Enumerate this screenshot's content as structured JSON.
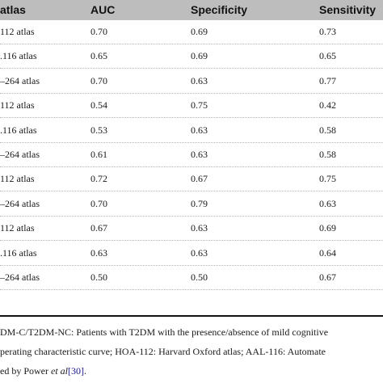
{
  "table": {
    "headers": [
      "atlas",
      "AUC",
      "Specificity",
      "Sensitivity"
    ],
    "rows": [
      [
        "112 atlas",
        "0.70",
        "0.69",
        "0.73"
      ],
      ".116 atlas|0.65|0.69|0.65",
      [
        "–264 atlas",
        "0.70",
        "0.63",
        "0.77"
      ],
      [
        "112 atlas",
        "0.54",
        "0.75",
        "0.42"
      ],
      [
        ".116 atlas",
        "0.53",
        "0.63",
        "0.58"
      ],
      [
        "–264 atlas",
        "0.61",
        "0.63",
        "0.58"
      ],
      [
        "112 atlas",
        "0.72",
        "0.67",
        "0.75"
      ],
      [
        "–264 atlas",
        "0.70",
        "0.79",
        "0.63"
      ],
      [
        "112 atlas",
        "0.67",
        "0.63",
        "0.69"
      ],
      [
        ".116 atlas",
        "0.63",
        "0.63",
        "0.64"
      ],
      [
        "–264 atlas",
        "0.50",
        "0.50",
        "0.67"
      ]
    ]
  },
  "footnote": {
    "line1": "DM-C/T2DM-NC: Patients with T2DM with the presence/absence of mild cognitive",
    "line2": "perating characteristic curve; HOA-112: Harvard Oxford atlas; AAL-116: Automate",
    "line3_prefix": "ed by Power ",
    "line3_italic": "et al",
    "line3_ref": "[30]",
    "line3_suffix": "."
  }
}
